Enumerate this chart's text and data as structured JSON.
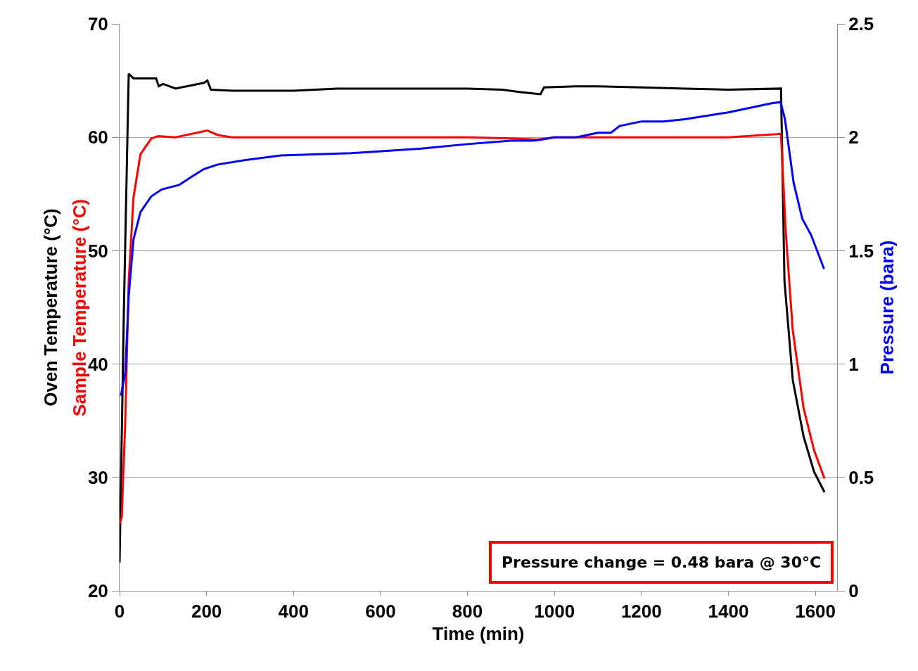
{
  "chart_data": {
    "type": "line",
    "xlabel": "Time (min)",
    "ylabel": "Oven Temperature (°C)",
    "y2label": "Pressure (bara)",
    "xlim": [
      0,
      1650
    ],
    "xticks": [
      0,
      200,
      400,
      600,
      800,
      1000,
      1200,
      1400,
      1600
    ],
    "ylim": [
      20,
      70
    ],
    "yticks": [
      20,
      30,
      40,
      50,
      60,
      70
    ],
    "y2lim": [
      0,
      2.5
    ],
    "y2ticks": [
      0,
      0.5,
      1,
      1.5,
      2,
      2.5
    ],
    "grid": "y",
    "legend": false,
    "marker": "none",
    "line_style": "solid",
    "annotations": [
      "Pressure change = 0.48 bara @ 30°C"
    ],
    "series": [
      {
        "color": "#000000",
        "x": [
          0,
          10,
          21,
          32,
          84,
          90,
          100,
          129,
          194,
          202,
          210,
          260,
          320,
          400,
          500,
          600,
          700,
          800,
          880,
          919,
          968,
          976,
          1050,
          1100,
          1200,
          1300,
          1400,
          1521,
          1529,
          1548,
          1573,
          1597,
          1621
        ],
        "values": [
          22.5,
          45,
          65.6,
          65.2,
          65.2,
          64.5,
          64.7,
          64.3,
          64.8,
          65.0,
          64.2,
          64.1,
          64.1,
          64.1,
          64.3,
          64.3,
          64.3,
          64.3,
          64.2,
          64.0,
          63.8,
          64.4,
          64.5,
          64.5,
          64.4,
          64.3,
          64.2,
          64.3,
          47.3,
          38.6,
          33.6,
          30.5,
          28.7
        ]
      },
      {
        "name": "Sample Temperature (°C)",
        "color": "#ff0000",
        "x": [
          0,
          5,
          13,
          21,
          32,
          48,
          73,
          89,
          129,
          202,
          226,
          258,
          400,
          600,
          800,
          900,
          960,
          1000,
          1200,
          1400,
          1521,
          1532,
          1548,
          1573,
          1597,
          1621
        ],
        "values": [
          25.9,
          26.5,
          34.9,
          47.3,
          54.7,
          58.5,
          59.9,
          60.1,
          60.0,
          60.6,
          60.2,
          60.0,
          60.0,
          60.0,
          60.0,
          59.9,
          59.8,
          60.0,
          60.0,
          60.0,
          60.3,
          51.6,
          43.0,
          36.1,
          32.4,
          29.9
        ]
      },
      {
        "color": "#0000ff",
        "axis": "y2",
        "x": [
          3,
          13,
          21,
          32,
          48,
          73,
          97,
          137,
          169,
          194,
          226,
          290,
          371,
          532,
          694,
          800,
          900,
          950,
          970,
          1000,
          1050,
          1100,
          1130,
          1150,
          1200,
          1250,
          1300,
          1400,
          1450,
          1500,
          1520,
          1530,
          1550,
          1570,
          1590,
          1620
        ],
        "values": [
          0.86,
          0.96,
          1.3,
          1.55,
          1.67,
          1.74,
          1.77,
          1.79,
          1.83,
          1.86,
          1.88,
          1.9,
          1.92,
          1.93,
          1.95,
          1.97,
          1.985,
          1.985,
          1.99,
          2.0,
          2.0,
          2.02,
          2.02,
          2.05,
          2.07,
          2.07,
          2.08,
          2.11,
          2.13,
          2.15,
          2.155,
          2.08,
          1.8,
          1.64,
          1.57,
          1.42
        ]
      }
    ]
  }
}
